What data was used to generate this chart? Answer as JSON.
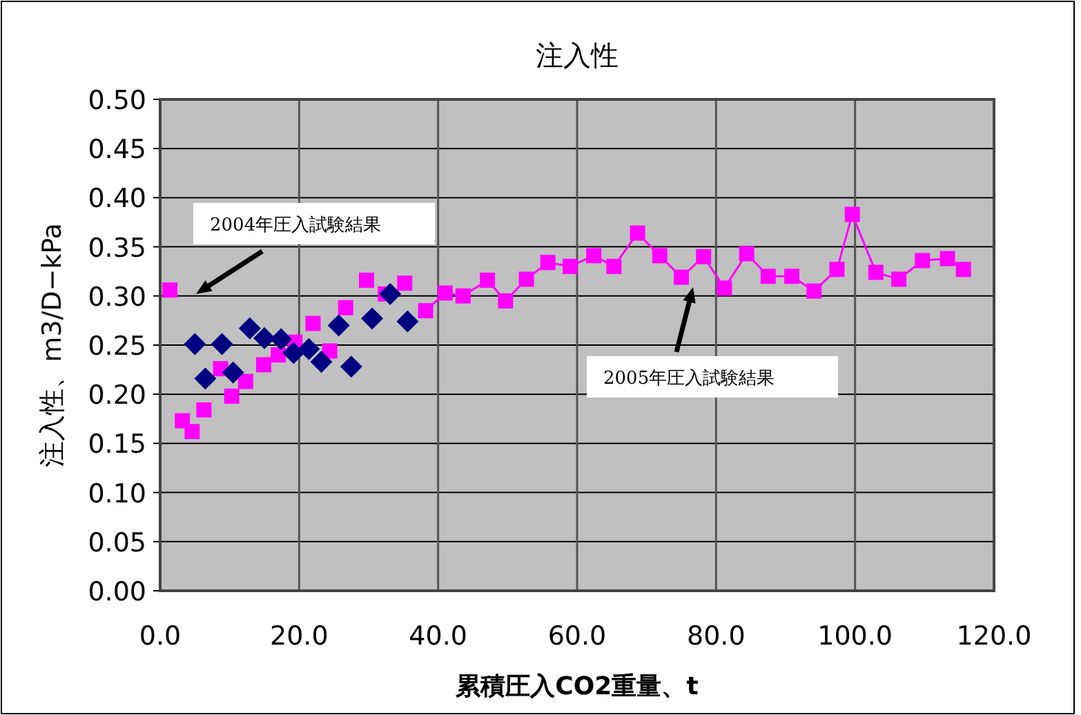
{
  "chart_data": {
    "type": "scatter",
    "title": "注入性",
    "xlabel": "累積圧入CO2重量、t",
    "ylabel": "注入性、m3/D−kPa",
    "xlim": [
      0,
      120
    ],
    "ylim": [
      0,
      0.5
    ],
    "xticks": [
      {
        "value": 0,
        "label": "0.0"
      },
      {
        "value": 20,
        "label": "20.0"
      },
      {
        "value": 40,
        "label": "40.0"
      },
      {
        "value": 60,
        "label": "60.0"
      },
      {
        "value": 80,
        "label": "80.0"
      },
      {
        "value": 100,
        "label": "100.0"
      },
      {
        "value": 120,
        "label": "120.0"
      }
    ],
    "yticks": [
      {
        "value": 0,
        "label": "0.00"
      },
      {
        "value": 0.05,
        "label": "0.05"
      },
      {
        "value": 0.1,
        "label": "0.10"
      },
      {
        "value": 0.15,
        "label": "0.15"
      },
      {
        "value": 0.2,
        "label": "0.20"
      },
      {
        "value": 0.25,
        "label": "0.25"
      },
      {
        "value": 0.3,
        "label": "0.30"
      },
      {
        "value": 0.35,
        "label": "0.35"
      },
      {
        "value": 0.4,
        "label": "0.40"
      },
      {
        "value": 0.45,
        "label": "0.45"
      },
      {
        "value": 0.5,
        "label": "0.50"
      }
    ],
    "grid": true,
    "series": [
      {
        "type": "scatter",
        "marker": "square",
        "color": "#ff00ff",
        "x": [
          1.4,
          3.2,
          4.6,
          6.3,
          8.7,
          10.3,
          12.3,
          14.9,
          17.0,
          19.4,
          22.0,
          24.4,
          26.7,
          29.7,
          32.4,
          35.2
        ],
        "values": [
          0.306,
          0.173,
          0.162,
          0.184,
          0.226,
          0.198,
          0.213,
          0.23,
          0.24,
          0.253,
          0.272,
          0.244,
          0.288,
          0.316,
          0.302,
          0.313
        ]
      },
      {
        "type": "line",
        "marker": "square",
        "color": "#ff00ff",
        "x": [
          38.2,
          41.0,
          43.6,
          47.1,
          49.7,
          52.7,
          55.8,
          59.0,
          62.4,
          65.3,
          68.7,
          71.9,
          75.0,
          78.2,
          81.2,
          84.4,
          87.5,
          90.9,
          94.1,
          97.4,
          99.6,
          103.0,
          106.3,
          109.7,
          113.3,
          115.6
        ],
        "values": [
          0.285,
          0.303,
          0.3,
          0.316,
          0.295,
          0.317,
          0.334,
          0.33,
          0.341,
          0.33,
          0.364,
          0.341,
          0.319,
          0.34,
          0.308,
          0.343,
          0.32,
          0.32,
          0.305,
          0.327,
          0.383,
          0.324,
          0.317,
          0.336,
          0.338,
          0.327
        ]
      },
      {
        "type": "scatter",
        "marker": "diamond",
        "color": "#000080",
        "x": [
          5.0,
          6.5,
          8.9,
          10.5,
          12.9,
          15.0,
          17.4,
          19.2,
          21.4,
          23.2,
          25.7,
          27.5,
          30.5,
          33.1,
          35.6
        ],
        "values": [
          0.251,
          0.216,
          0.251,
          0.222,
          0.267,
          0.257,
          0.256,
          0.242,
          0.246,
          0.233,
          0.27,
          0.228,
          0.277,
          0.302,
          0.274
        ]
      }
    ],
    "annotations": [
      "2004年圧入試験結果",
      "2005年圧入試験結果"
    ]
  }
}
